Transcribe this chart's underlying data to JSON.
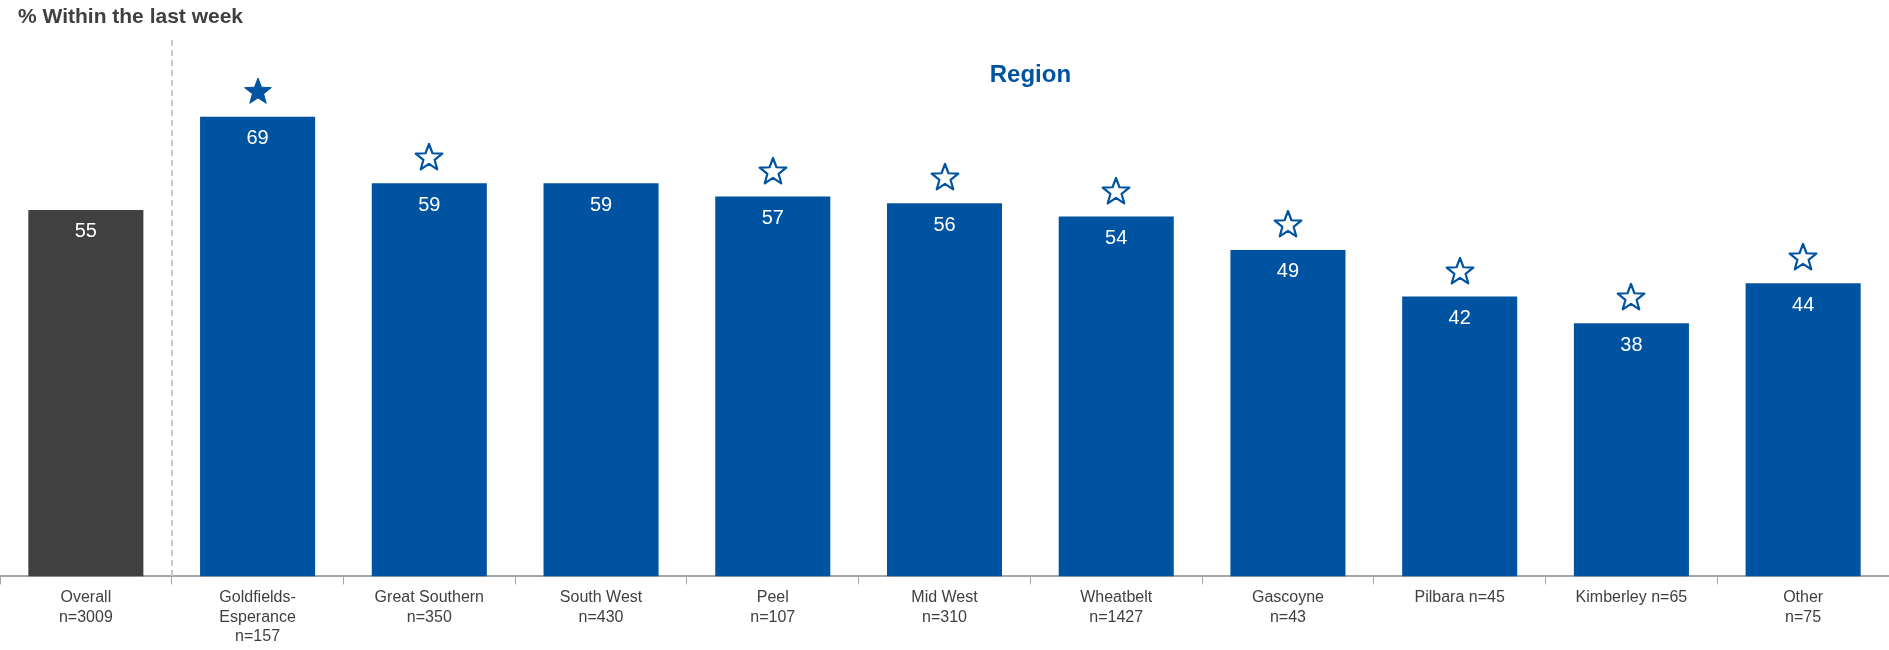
{
  "chart_data": {
    "type": "bar",
    "title": "% Within the last week",
    "categories": [
      "Overall\nn=3009",
      "Goldfields-\nEsperance\nn=157",
      "Great Southern\nn=350",
      "South West\nn=430",
      "Peel\nn=107",
      "Mid West\nn=310",
      "Wheatbelt\nn=1427",
      "Gascoyne\nn=43",
      "Pilbara n=45",
      "Kimberley n=65",
      "Other\nn=75"
    ],
    "values": [
      55,
      69,
      59,
      59,
      57,
      56,
      54,
      49,
      42,
      38,
      44
    ],
    "colors": [
      "#404040",
      "#0053a0",
      "#0053a0",
      "#0053a0",
      "#0053a0",
      "#0053a0",
      "#0053a0",
      "#0053a0",
      "#0053a0",
      "#0053a0",
      "#0053a0"
    ],
    "data_labels": true,
    "annotations": [
      "Region"
    ],
    "grid": false,
    "legend": false
  }
}
